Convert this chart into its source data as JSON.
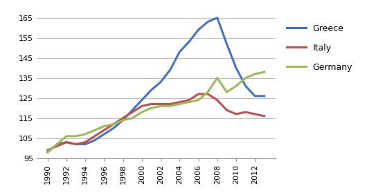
{
  "years": [
    1990,
    1991,
    1992,
    1993,
    1994,
    1995,
    1996,
    1997,
    1998,
    1999,
    2000,
    2001,
    2002,
    2003,
    2004,
    2005,
    2006,
    2007,
    2008,
    2009,
    2010,
    2011,
    2012,
    2013
  ],
  "greece": [
    98,
    102,
    103,
    102,
    102,
    104,
    107,
    110,
    114,
    119,
    124,
    129,
    133,
    139,
    148,
    153,
    159,
    163,
    165,
    152,
    140,
    131,
    126,
    126
  ],
  "italy": [
    99,
    101,
    103,
    102,
    103,
    106,
    109,
    112,
    115,
    118,
    121,
    122,
    122,
    122,
    123,
    124,
    127,
    127,
    124,
    119,
    117,
    118,
    117,
    116
  ],
  "germany": [
    98,
    102,
    106,
    106,
    107,
    109,
    111,
    112,
    114,
    115,
    118,
    120,
    121,
    121,
    122,
    123,
    124,
    128,
    135,
    128,
    131,
    135,
    137,
    138
  ],
  "greece_color": "#4472C4",
  "italy_color": "#C0504D",
  "germany_color": "#9BBB59",
  "ylim": [
    95,
    170
  ],
  "yticks": [
    95,
    105,
    115,
    125,
    135,
    145,
    155,
    165
  ],
  "xtick_years": [
    1990,
    1992,
    1994,
    1996,
    1998,
    2000,
    2002,
    2004,
    2006,
    2008,
    2010,
    2012
  ],
  "legend_labels": [
    "Greece",
    "Italy",
    "Germany"
  ],
  "background_color": "#FFFFFF",
  "grid_color": "#BBBBBB",
  "linewidth": 2.2,
  "tick_fontsize": 8,
  "legend_fontsize": 9
}
